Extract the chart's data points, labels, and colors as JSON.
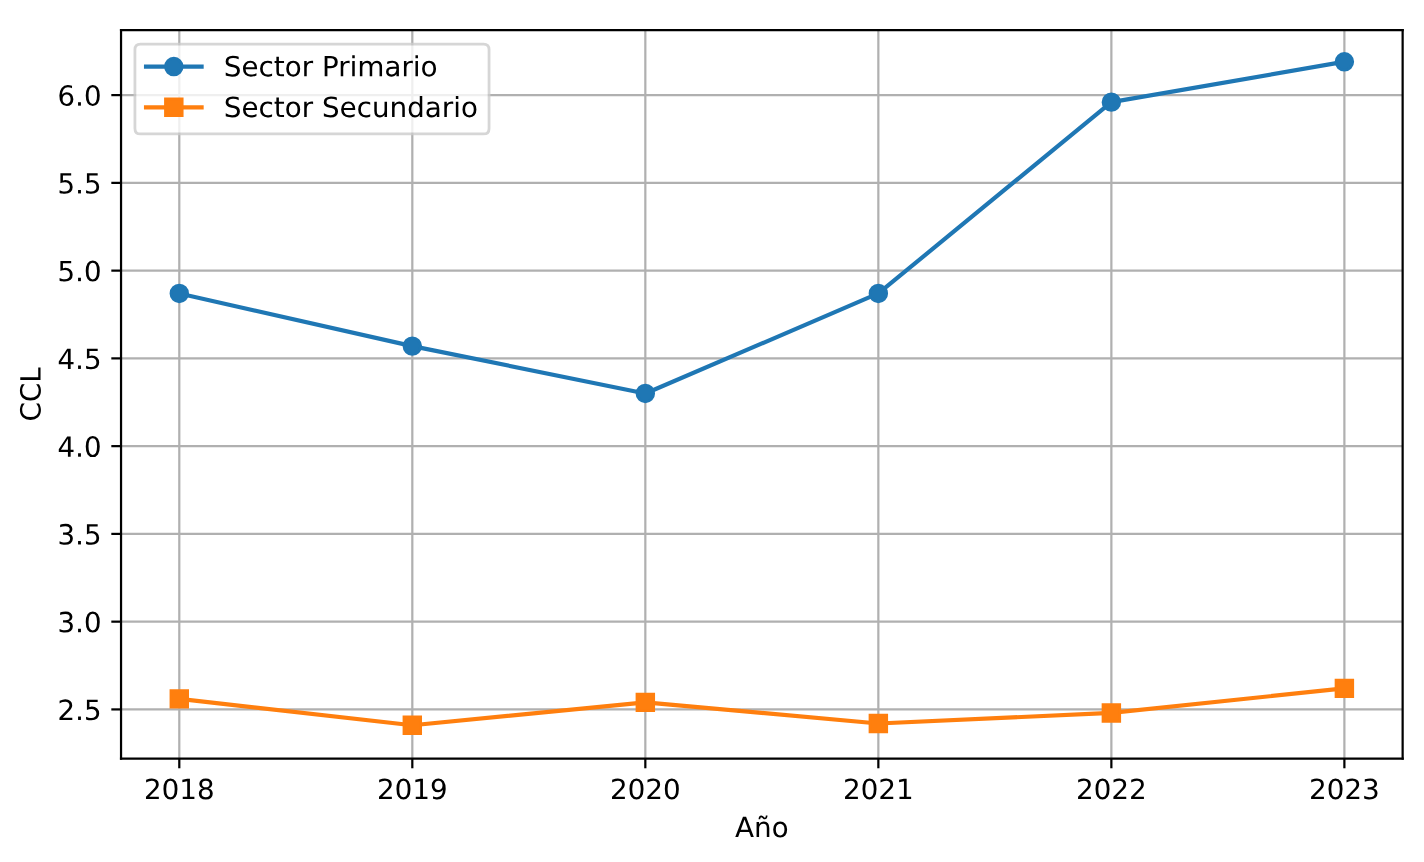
{
  "chart_data": {
    "type": "line",
    "xlabel": "Año",
    "ylabel": "CCL",
    "x": [
      2018,
      2019,
      2020,
      2021,
      2022,
      2023
    ],
    "series": [
      {
        "name": "Sector Primario",
        "color": "#1f77b4",
        "marker": "circle",
        "values": [
          4.87,
          4.57,
          4.3,
          4.87,
          5.96,
          6.19
        ]
      },
      {
        "name": "Sector Secundario",
        "color": "#ff7f0e",
        "marker": "square",
        "values": [
          2.56,
          2.41,
          2.54,
          2.42,
          2.48,
          2.62
        ]
      }
    ],
    "xlim": [
      2017.75,
      2023.25
    ],
    "xticks": [
      2018,
      2019,
      2020,
      2021,
      2022,
      2023
    ],
    "ylim": [
      2.22,
      6.37
    ],
    "yticks": [
      {
        "value": 2.5,
        "label": "2.5"
      },
      {
        "value": 3,
        "label": "3.0"
      },
      {
        "value": 3.5,
        "label": "3.5"
      },
      {
        "value": 4,
        "label": "4.0"
      },
      {
        "value": 4.5,
        "label": "4.5"
      },
      {
        "value": 5,
        "label": "5.0"
      },
      {
        "value": 5.5,
        "label": "5.5"
      },
      {
        "value": 6,
        "label": "6.0"
      }
    ],
    "grid": true,
    "legend": "top left",
    "line_style": "solid"
  }
}
